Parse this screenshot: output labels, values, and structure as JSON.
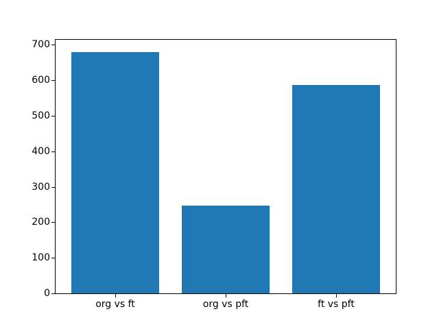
{
  "figure": {
    "background": "#ffffff"
  },
  "chart_data": {
    "type": "bar",
    "title": "",
    "xlabel": "",
    "ylabel": "",
    "categories": [
      "org vs ft",
      "org vs pft",
      "ft vs pft"
    ],
    "values": [
      680,
      248,
      586
    ],
    "yticks": [
      "0",
      "100",
      "200",
      "300",
      "400",
      "500",
      "600",
      "700"
    ],
    "ytick_values": [
      0,
      100,
      200,
      300,
      400,
      500,
      600,
      700
    ],
    "ylim": [
      0,
      714
    ],
    "xlim": [
      -0.54,
      2.54
    ],
    "bar_width": 0.8,
    "bar_color": "#1f77b4",
    "spine_color": "#000000",
    "tick_color": "#000000",
    "grid": false,
    "legend": false
  }
}
